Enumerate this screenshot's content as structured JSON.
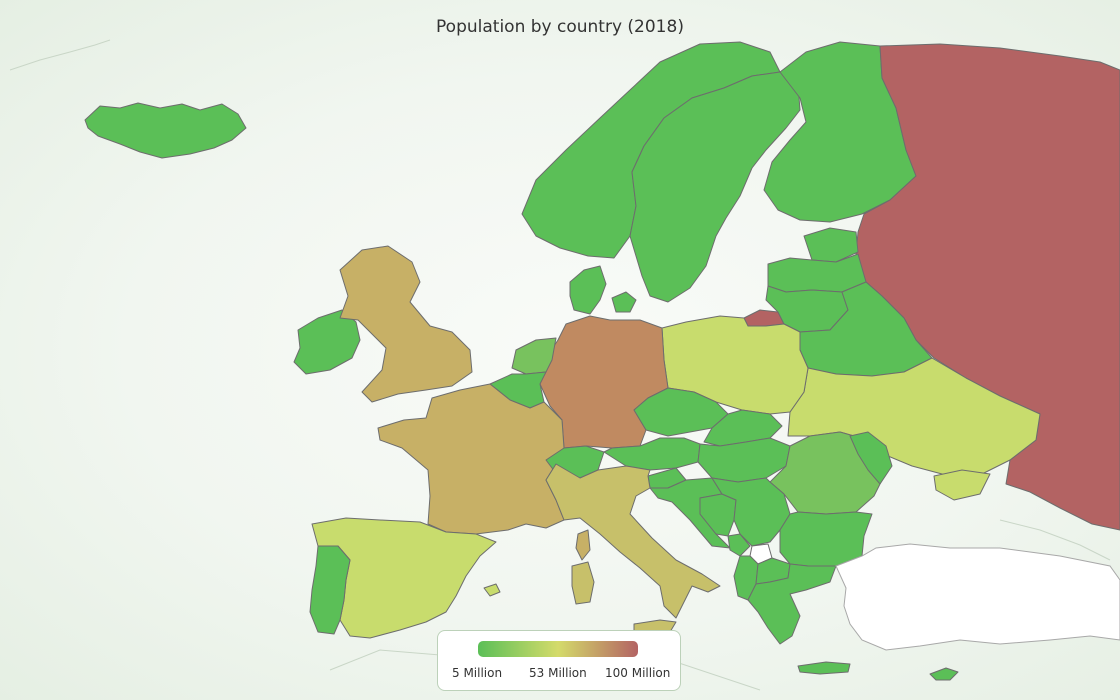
{
  "map": {
    "title": "Population by country (2018)"
  },
  "legend": {
    "labels": [
      "5 Million",
      "53 Million",
      "100 Million"
    ],
    "color_low": "#5bbf57",
    "color_mid": "#d4db6a",
    "color_high": "#b36363"
  },
  "colors": {
    "low": "#5bbf57",
    "low_mid": "#78c25e",
    "mid": "#c8dc6d",
    "mid_high": "#c7b066",
    "high_mid": "#c08a61",
    "high": "#b36363",
    "no_data": "#ffffff",
    "sea": "#f3f7f2"
  }
}
